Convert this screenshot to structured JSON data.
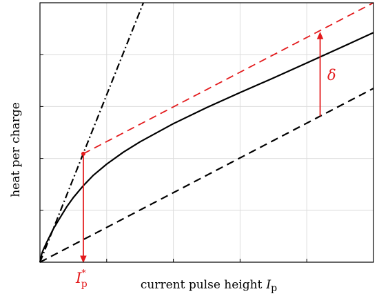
{
  "chart_data": {
    "type": "line",
    "title": "",
    "xlabel": "current pulse height",
    "xlabel_symbol": "I",
    "xlabel_subscript": "p",
    "ylabel": "heat per charge",
    "xlim": [
      0,
      1
    ],
    "ylim": [
      0,
      1
    ],
    "xticks": [
      0,
      0.2,
      0.4,
      0.6,
      0.8,
      1.0
    ],
    "yticks": [
      0,
      0.2,
      0.4,
      0.6,
      0.8,
      1.0
    ],
    "tick_labels_shown": false,
    "grid": true,
    "series": [
      {
        "style": "solid",
        "color": "#000000",
        "x": [
          0,
          0.005,
          0.01,
          0.02,
          0.04,
          0.06,
          0.08,
          0.1,
          0.13,
          0.16,
          0.2,
          0.25,
          0.3,
          0.4,
          0.5,
          0.6,
          0.7,
          0.8,
          0.9,
          1.0
        ],
        "y": [
          0,
          0.031,
          0.048,
          0.076,
          0.128,
          0.171,
          0.213,
          0.249,
          0.295,
          0.335,
          0.378,
          0.424,
          0.464,
          0.534,
          0.596,
          0.654,
          0.71,
          0.768,
          0.826,
          0.885
        ]
      },
      {
        "style": "dash-dot",
        "color": "#000000",
        "x": [
          0,
          0.31
        ],
        "y": [
          0,
          1.0
        ]
      },
      {
        "style": "dashed",
        "color": "#000000",
        "x": [
          0,
          1.0
        ],
        "y": [
          0,
          0.67
        ]
      },
      {
        "style": "dashed",
        "color": "#e31a1c",
        "x": [
          0.13,
          1.0
        ],
        "y": [
          0.418,
          1.0
        ]
      }
    ],
    "annotations": [
      {
        "kind": "arrow",
        "color": "#e31a1c",
        "from": [
          0.13,
          0.418
        ],
        "to": [
          0.13,
          0
        ],
        "label": "I",
        "label_subscript": "p",
        "label_superscript": "*"
      },
      {
        "kind": "arrow",
        "color": "#e31a1c",
        "from": [
          0.84,
          0.563
        ],
        "to": [
          0.84,
          0.885
        ],
        "label": "δ"
      }
    ]
  }
}
